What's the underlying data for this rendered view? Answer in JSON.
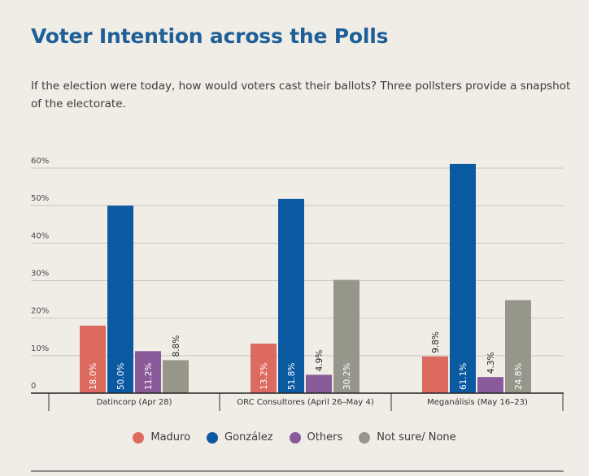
{
  "header": {
    "title": "Voter Intention across the Polls",
    "subtitle": "If the election were today, how would voters cast their ballots? Three pollsters provide a snapshot of the electorate."
  },
  "chart_data": {
    "type": "bar",
    "categories": [
      "Datincorp (Apr 28)",
      "ORC Consultores (April 26–May 4)",
      "Meganálisis (May 16–23)"
    ],
    "series": [
      {
        "name": "Maduro",
        "color": "#dc6a5f",
        "values": [
          18.0,
          13.2,
          9.8
        ],
        "labels": [
          "18.0%",
          "13.2%",
          "9.8%"
        ]
      },
      {
        "name": "González",
        "color": "#0b59a0",
        "values": [
          50.0,
          51.8,
          61.1
        ],
        "labels": [
          "50.0%",
          "51.8%",
          "61.1%"
        ]
      },
      {
        "name": "Others",
        "color": "#8a5a9a",
        "values": [
          11.2,
          4.9,
          4.3
        ],
        "labels": [
          "11.2%",
          "4.9%",
          "4.3%"
        ]
      },
      {
        "name": "Not sure/ None",
        "color": "#96968a",
        "values": [
          8.8,
          30.2,
          24.8
        ],
        "labels": [
          "8.8%",
          "30.2%",
          "24.8%"
        ]
      }
    ],
    "yticks": [
      "0",
      "10%",
      "20%",
      "30%",
      "40%",
      "50%",
      "60%"
    ],
    "ylim": [
      0,
      60
    ],
    "grid": true,
    "legend_position": "bottom"
  }
}
